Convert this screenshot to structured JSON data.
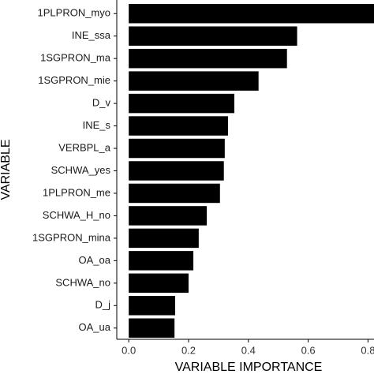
{
  "chart_data": {
    "type": "barh",
    "categories": [
      "1PLPRON_myo",
      "INE_ssa",
      "1SGPRON_ma",
      "1SGPRON_mie",
      "D_v",
      "INE_s",
      "VERBPL_a",
      "SCHWA_yes",
      "1PLPRON_me",
      "SCHWA_H_no",
      "1SGPRON_mina",
      "OA_oa",
      "SCHWA_no",
      "D_j",
      "OA_ua"
    ],
    "values": [
      0.82,
      0.563,
      0.529,
      0.434,
      0.353,
      0.332,
      0.321,
      0.318,
      0.305,
      0.261,
      0.234,
      0.216,
      0.2,
      0.155,
      0.153
    ],
    "color": "#000000",
    "xlim": [
      -0.04,
      0.82
    ],
    "xticks": [
      {
        "value": 0,
        "label": "0.0"
      },
      0.2,
      0.4,
      0.6,
      0.8
    ],
    "xlabel": "VARIABLE IMPORTANCE",
    "ylabel": "VARIABLE",
    "grid": false
  }
}
